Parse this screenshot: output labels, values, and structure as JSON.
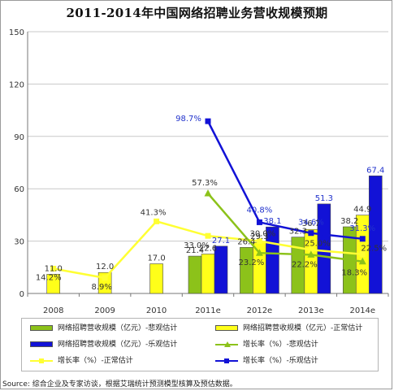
{
  "title": "2011-2014年中国网络招聘业务营收规模预期",
  "source": "Source: 综合企业及专家访谈，根据艾瑞统计预测模型核算及预估数据。",
  "colors": {
    "conservative_bar": "#8cc21a",
    "normal_bar": "#ffff19",
    "optimistic_bar": "#1212d6",
    "normal_line": "#ffff33",
    "conservative_line": "#8cc21a",
    "optimistic_line": "#1212d6",
    "optimistic_label": "#2233cc"
  },
  "legend": {
    "conservative_bar": "网络招聘营收规模（亿元）-悲观估计",
    "normal_bar": "网络招聘营收规模（亿元）-正常估计",
    "optimistic_bar": "网络招聘营收规模（亿元）-乐观估计",
    "conservative_line": "增长率（%）-悲观估计",
    "normal_line": "增长率（%）-正常估计",
    "optimistic_line": "增长率（%）-乐观估计"
  },
  "chart_data": {
    "type": "bar",
    "title": "2011-2014年中国网络招聘业务营收规模预期",
    "categories": [
      "2008",
      "2009",
      "2010",
      "2011e",
      "2012e",
      "2013e",
      "2014e"
    ],
    "ylim": [
      0,
      150
    ],
    "yticks": [
      0,
      30,
      60,
      90,
      120,
      150
    ],
    "grid": true,
    "legend_position": "bottom",
    "bar_series": [
      {
        "name": "网络招聘营收规模（亿元）-悲观估计",
        "values": [
          null,
          null,
          null,
          21.4,
          26.4,
          32.3,
          38.2
        ],
        "labels": [
          "",
          "",
          "",
          "21.4",
          "26.4",
          "32.3",
          "38.2"
        ]
      },
      {
        "name": "网络招聘营收规模（亿元）-正常估计",
        "values": [
          11.0,
          12.0,
          17.0,
          22.6,
          29.3,
          36.7,
          44.9
        ],
        "labels": [
          "11.0",
          "12.0",
          "17.0",
          "22.6",
          "29.3",
          "36.7",
          "44.9"
        ]
      },
      {
        "name": "网络招聘营收规模（亿元）-乐观估计",
        "values": [
          null,
          null,
          null,
          27.1,
          38.1,
          51.3,
          67.4
        ],
        "labels": [
          "",
          "",
          "",
          "27.1",
          "38.1",
          "51.3",
          "67.4"
        ]
      }
    ],
    "line_series": [
      {
        "name": "增长率（%）-正常估计",
        "values": [
          14.2,
          8.9,
          41.3,
          33.0,
          30.0,
          25.0,
          22.5
        ],
        "labels": [
          "14.2%",
          "8.9%",
          "41.3%",
          "33.0%",
          "30.0%",
          "25.0%",
          "22.5%"
        ]
      },
      {
        "name": "增长率（%）-悲观估计",
        "values": [
          null,
          null,
          null,
          57.3,
          23.2,
          22.2,
          18.3
        ],
        "labels": [
          "",
          "",
          "",
          "57.3%",
          "23.2%",
          "22.2%",
          "18.3%"
        ]
      },
      {
        "name": "增长率（%）-乐观估计",
        "values": [
          null,
          null,
          null,
          98.7,
          40.8,
          34.6,
          31.3
        ],
        "labels": [
          "",
          "",
          "",
          "98.7%",
          "40.8%",
          "34.6%",
          "31.3%"
        ]
      }
    ]
  }
}
